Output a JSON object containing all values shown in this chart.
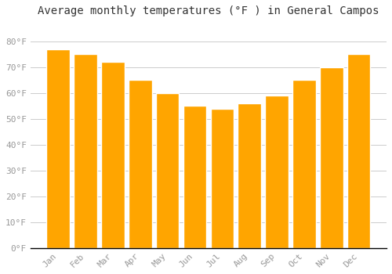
{
  "months": [
    "Jan",
    "Feb",
    "Mar",
    "Apr",
    "May",
    "Jun",
    "Jul",
    "Aug",
    "Sep",
    "Oct",
    "Nov",
    "Dec"
  ],
  "values": [
    77,
    75,
    72,
    65,
    60,
    55,
    54,
    56,
    59,
    65,
    70,
    75
  ],
  "bar_color": "#FFA500",
  "bar_edge_color": "#CC8800",
  "title": "Average monthly temperatures (°F ) in General Campos",
  "ylim": [
    0,
    88
  ],
  "yticks": [
    0,
    10,
    20,
    30,
    40,
    50,
    60,
    70,
    80
  ],
  "ytick_labels": [
    "0°F",
    "10°F",
    "20°F",
    "30°F",
    "40°F",
    "50°F",
    "60°F",
    "70°F",
    "80°F"
  ],
  "background_color": "#FFFFFF",
  "grid_color": "#CCCCCC",
  "title_fontsize": 10,
  "tick_fontsize": 8,
  "title_font": "monospace",
  "tick_color": "#999999"
}
